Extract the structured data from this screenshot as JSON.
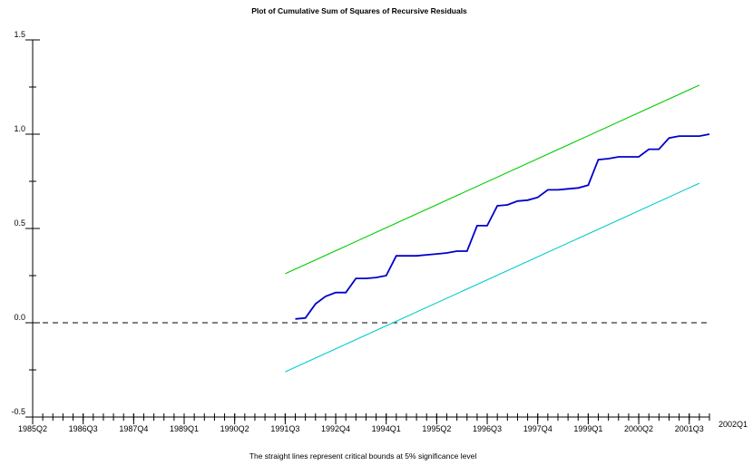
{
  "chart_data": {
    "type": "line",
    "title": "Plot of Cumulative Sum of Squares of Recursive Residuals",
    "footnote": "The straight lines represent critical bounds at 5% significance level",
    "xlabel": "",
    "ylabel": "",
    "x_start_quarter": "1985Q2",
    "x_end_quarter": "2002Q1",
    "x_tick_labels": [
      "1985Q2",
      "1986Q3",
      "1987Q4",
      "1989Q1",
      "1990Q2",
      "1991Q3",
      "1992Q4",
      "1994Q1",
      "1995Q2",
      "1996Q3",
      "1997Q4",
      "1999Q1",
      "2000Q2",
      "2001Q3",
      "2002Q1"
    ],
    "ylim": [
      -0.5,
      1.5
    ],
    "y_ticks": [
      -0.5,
      0.0,
      0.5,
      1.0,
      1.5
    ],
    "y_tick_labels": [
      "-0.5",
      "0.0",
      "0.5",
      "1.0",
      "1.5"
    ],
    "reference_line": {
      "y": 0.0,
      "style": "dashed",
      "color": "#000000"
    },
    "series": [
      {
        "color": "#0000cc",
        "x_start": "1991Q4",
        "values": [
          0.02,
          0.025,
          0.1,
          0.14,
          0.16,
          0.16,
          0.235,
          0.235,
          0.24,
          0.25,
          0.355,
          0.355,
          0.355,
          0.36,
          0.365,
          0.37,
          0.38,
          0.38,
          0.515,
          0.515,
          0.62,
          0.625,
          0.645,
          0.65,
          0.665,
          0.705,
          0.705,
          0.71,
          0.715,
          0.73,
          0.865,
          0.87,
          0.88,
          0.88,
          0.88,
          0.92,
          0.92,
          0.98,
          0.99,
          0.99,
          0.99,
          1.0
        ]
      },
      {
        "color": "#00cc00",
        "x_start": "1991Q3",
        "x_end": "2001Q4",
        "values": [
          0.26,
          1.26
        ]
      },
      {
        "color": "#00cccc",
        "x_start": "1991Q3",
        "x_end": "2001Q4",
        "values": [
          -0.26,
          0.74
        ]
      }
    ]
  }
}
